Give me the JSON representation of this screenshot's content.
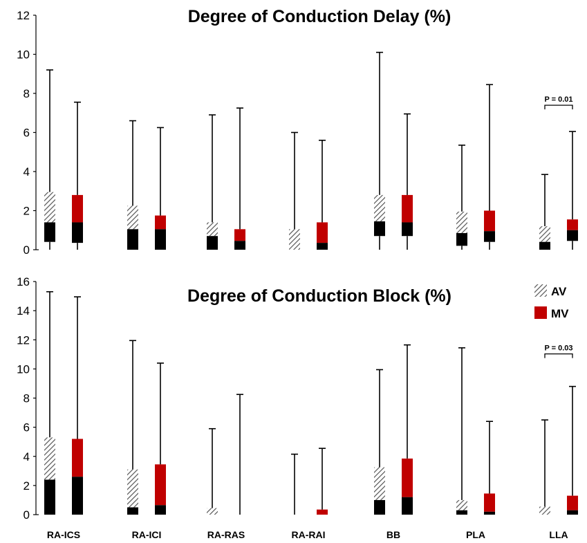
{
  "colors": {
    "mv": "#c00000",
    "median_segment": "#000000",
    "av_hatch": "#555555"
  },
  "legend": {
    "av_label": "AV",
    "mv_label": "MV"
  },
  "chart_data": [
    {
      "type": "bar",
      "title": "Degree of Conduction Delay (%)",
      "categories": [
        "RA-ICS",
        "RA-ICI",
        "RA-RAS",
        "RA-RAI",
        "BB",
        "PLA",
        "LLA"
      ],
      "ylim": [
        0,
        12
      ],
      "yticks": [
        0,
        2,
        4,
        6,
        8,
        10,
        12
      ],
      "series": [
        {
          "name": "AV",
          "pattern": "hatch",
          "q1": [
            0.4,
            0,
            0,
            0,
            0.7,
            0.2,
            0
          ],
          "median": [
            1.4,
            1.05,
            0.7,
            0,
            1.45,
            0.85,
            0.4
          ],
          "q3": [
            2.95,
            2.25,
            1.4,
            1.05,
            2.8,
            1.95,
            1.2
          ],
          "max": [
            9.2,
            6.6,
            6.9,
            6.0,
            10.1,
            5.35,
            3.85
          ]
        },
        {
          "name": "MV",
          "pattern": "solid",
          "q1": [
            0.35,
            0,
            0,
            0,
            0.7,
            0.4,
            0.45
          ],
          "median": [
            1.4,
            1.05,
            0.45,
            0.35,
            1.4,
            0.95,
            1.0
          ],
          "q3": [
            2.8,
            1.75,
            1.05,
            1.4,
            2.8,
            2.0,
            1.55
          ],
          "max": [
            7.55,
            6.25,
            7.25,
            5.6,
            6.95,
            8.45,
            6.05
          ]
        }
      ],
      "annotations": [
        {
          "category": "LLA",
          "text": "P = 0.01"
        }
      ]
    },
    {
      "type": "bar",
      "title": "Degree of Conduction Block (%)",
      "categories": [
        "RA-ICS",
        "RA-ICI",
        "RA-RAS",
        "RA-RAI",
        "BB",
        "PLA",
        "LLA"
      ],
      "ylim": [
        0,
        16
      ],
      "yticks": [
        0,
        2,
        4,
        6,
        8,
        10,
        12,
        14,
        16
      ],
      "series": [
        {
          "name": "AV",
          "pattern": "hatch",
          "q1": [
            0,
            0,
            0,
            0,
            0,
            0,
            0
          ],
          "median": [
            2.4,
            0.5,
            0,
            0,
            1.0,
            0.3,
            0
          ],
          "q3": [
            5.3,
            3.1,
            0.45,
            0,
            3.25,
            1.0,
            0.55
          ],
          "max": [
            15.3,
            11.95,
            5.9,
            4.15,
            9.95,
            11.45,
            6.5
          ]
        },
        {
          "name": "MV",
          "pattern": "solid",
          "q1": [
            0,
            0,
            0,
            0,
            0,
            0,
            0
          ],
          "median": [
            2.6,
            0.65,
            0,
            0,
            1.2,
            0.2,
            0.3
          ],
          "q3": [
            5.2,
            3.45,
            0,
            0.35,
            3.85,
            1.45,
            1.3
          ],
          "max": [
            14.95,
            10.4,
            8.25,
            4.55,
            11.65,
            6.4,
            8.8
          ]
        }
      ],
      "annotations": [
        {
          "category": "LLA",
          "text": "P = 0.03"
        }
      ]
    }
  ]
}
